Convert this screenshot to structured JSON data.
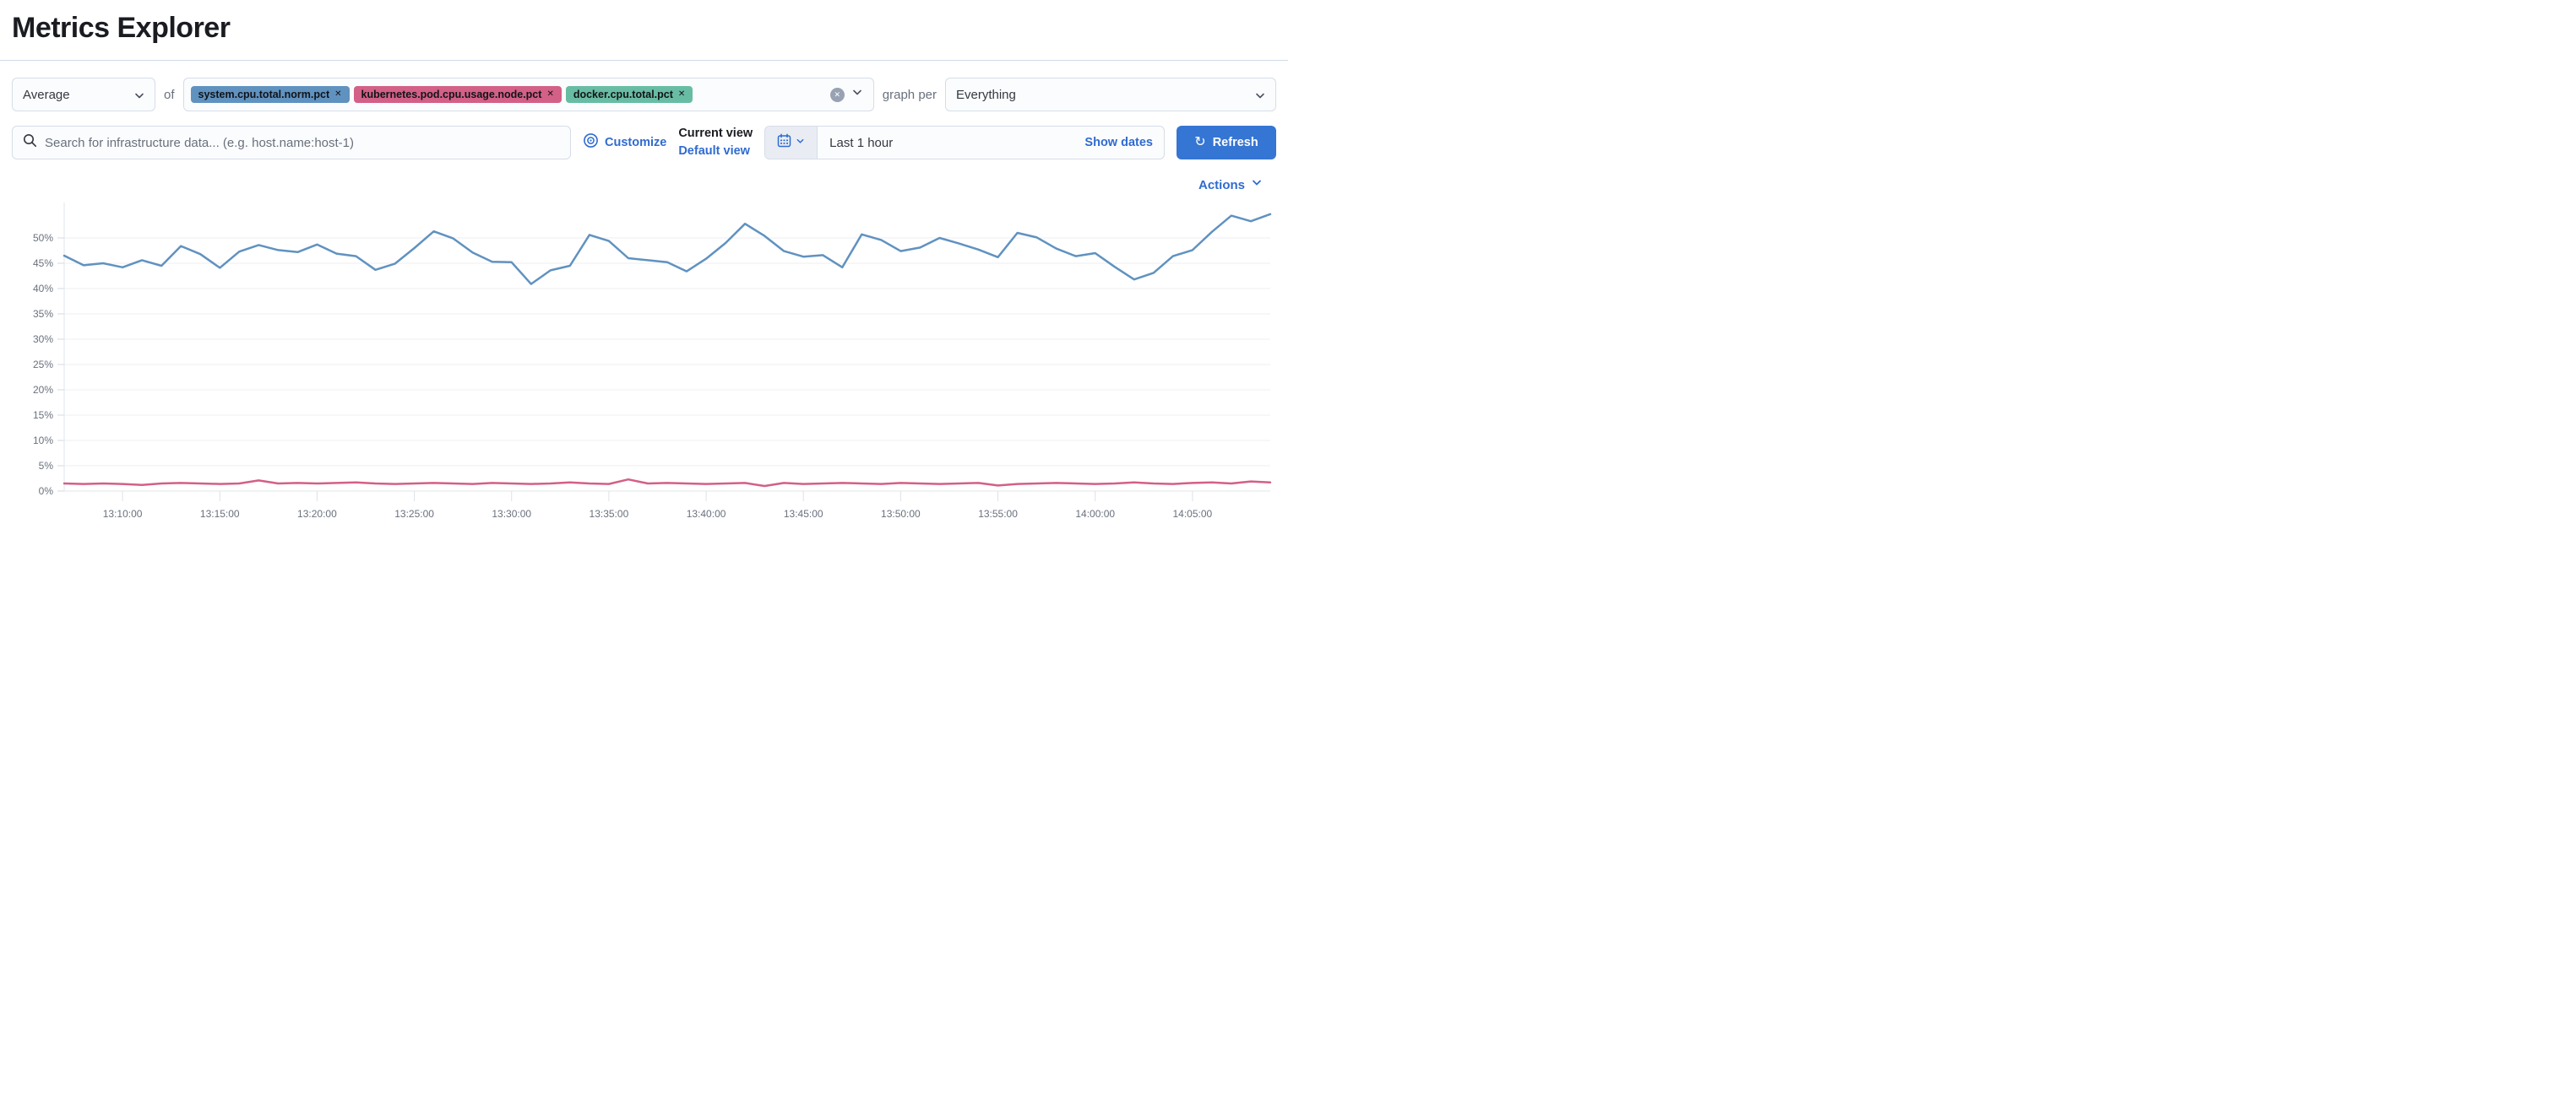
{
  "header": {
    "title": "Metrics Explorer"
  },
  "toolbar": {
    "aggregation": {
      "value": "Average"
    },
    "of_label": "of",
    "metrics": [
      {
        "label": "system.cpu.total.norm.pct",
        "color": "#6092C0"
      },
      {
        "label": "kubernetes.pod.cpu.usage.node.pct",
        "color": "#D36086"
      },
      {
        "label": "docker.cpu.total.pct",
        "color": "#68BCA3"
      }
    ],
    "graph_per_label": "graph per",
    "group_by": {
      "value": "Everything"
    }
  },
  "searchbar": {
    "value": "",
    "placeholder": "Search for infrastructure data... (e.g. host.name:host-1)"
  },
  "view_controls": {
    "customize_label": "Customize",
    "current_view_label": "Current view",
    "default_view_label": "Default view"
  },
  "datepicker": {
    "value": "Last 1 hour",
    "show_dates_label": "Show dates",
    "refresh_label": "Refresh"
  },
  "actions_label": "Actions",
  "icons": {
    "search": "magnifier",
    "customize": "eye",
    "quick_select": "calendar",
    "refresh": "circular-arrow",
    "clear": "cross-in-circle",
    "dropdown": "chevron-down",
    "remove_badge": "cross"
  },
  "colors": {
    "link": "#2f6bd0",
    "primary_button": "#3575d3",
    "axis_text": "#69707d",
    "gridline": "#edeff3"
  },
  "chart_data": {
    "type": "line",
    "title": "",
    "xlabel": "",
    "ylabel": "",
    "grid": true,
    "legend": "none",
    "ylim": [
      0,
      57
    ],
    "y_tick_step": 5,
    "y_tick_max": 50,
    "y_tick_suffix": "%",
    "x_tick_labels": [
      "13:10:00",
      "13:15:00",
      "13:20:00",
      "13:25:00",
      "13:30:00",
      "13:35:00",
      "13:40:00",
      "13:45:00",
      "13:50:00",
      "13:55:00",
      "14:00:00",
      "14:05:00"
    ],
    "x_tick_start_index": 3,
    "x_tick_step": 5,
    "series": [
      {
        "name": "system.cpu.total.norm.pct (avg)",
        "color": "#6092C0",
        "values": [
          46.5,
          44.6,
          45.0,
          44.2,
          45.6,
          44.5,
          48.4,
          46.8,
          44.1,
          47.3,
          48.6,
          47.6,
          47.2,
          48.7,
          46.9,
          46.4,
          43.7,
          44.9,
          48.0,
          51.3,
          49.9,
          47.1,
          45.3,
          45.2,
          40.9,
          43.6,
          44.5,
          50.6,
          49.4,
          46.0,
          45.6,
          45.2,
          43.4,
          45.9,
          49.0,
          52.8,
          50.4,
          47.4,
          46.3,
          46.6,
          44.2,
          50.7,
          49.6,
          47.4,
          48.1,
          50.0,
          48.9,
          47.7,
          46.2,
          51.0,
          50.1,
          47.9,
          46.4,
          47.0,
          44.3,
          41.8,
          43.1,
          46.4,
          47.6,
          51.2,
          54.4,
          53.3,
          54.7
        ]
      },
      {
        "name": "kubernetes.pod.cpu.usage.node.pct (avg)",
        "color": "#D36086",
        "values": [
          1.5,
          1.4,
          1.5,
          1.4,
          1.2,
          1.5,
          1.6,
          1.5,
          1.4,
          1.5,
          2.1,
          1.5,
          1.6,
          1.5,
          1.6,
          1.7,
          1.5,
          1.4,
          1.5,
          1.6,
          1.5,
          1.4,
          1.6,
          1.5,
          1.4,
          1.5,
          1.7,
          1.5,
          1.4,
          2.3,
          1.5,
          1.6,
          1.5,
          1.4,
          1.5,
          1.6,
          1.0,
          1.6,
          1.4,
          1.5,
          1.6,
          1.5,
          1.4,
          1.6,
          1.5,
          1.4,
          1.5,
          1.6,
          1.1,
          1.4,
          1.5,
          1.6,
          1.5,
          1.4,
          1.5,
          1.7,
          1.5,
          1.4,
          1.6,
          1.7,
          1.5,
          1.9,
          1.7
        ]
      }
    ]
  }
}
